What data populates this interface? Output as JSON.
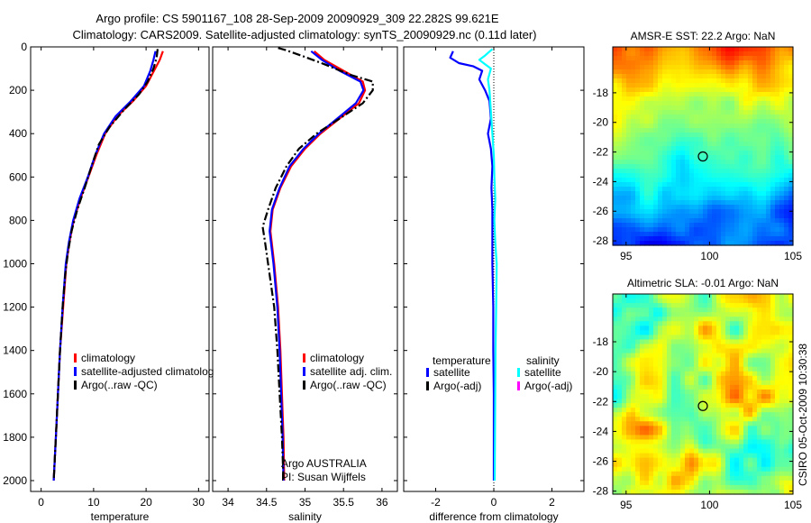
{
  "figure": {
    "title_line1": "Argo profile: CS 5901167_108 28-Sep-2009 20090929_309 22.282S 99.621E",
    "title_line2": "Climatology: CARS2009. Satellite-adjusted climatology: synTS_20090929.nc (0.11d later)",
    "side_label": "CSIRO 05-Oct-2009 10:30:38"
  },
  "chart_data": [
    {
      "type": "line",
      "id": "temperature",
      "xlabel": "temperature",
      "xlim": [
        -2,
        32
      ],
      "ylim": [
        0,
        2050
      ],
      "y_reversed": true,
      "xticks": [
        0,
        10,
        20,
        30
      ],
      "yticks": [
        0,
        200,
        400,
        600,
        800,
        1000,
        1200,
        1400,
        1600,
        1800,
        2000
      ],
      "legend": [
        "climatology",
        "satellite-adjusted climatolog",
        "Argo(..raw -QC)"
      ],
      "legend_colors": [
        "#ff0000",
        "#0000ff",
        "#000000"
      ],
      "series": [
        {
          "name": "climatology",
          "color": "#ff0000",
          "style": "solid",
          "points": [
            [
              23.2,
              20
            ],
            [
              22.6,
              60
            ],
            [
              21.5,
              110
            ],
            [
              20.0,
              180
            ],
            [
              17.5,
              250
            ],
            [
              14.5,
              320
            ],
            [
              12.2,
              400
            ],
            [
              10.5,
              500
            ],
            [
              9.0,
              600
            ],
            [
              7.5,
              700
            ],
            [
              6.2,
              800
            ],
            [
              5.4,
              900
            ],
            [
              4.8,
              1000
            ],
            [
              4.2,
              1200
            ],
            [
              3.6,
              1400
            ],
            [
              3.2,
              1600
            ],
            [
              2.8,
              1800
            ],
            [
              2.4,
              2000
            ]
          ]
        },
        {
          "name": "satellite-adjusted climatolog",
          "color": "#0000ff",
          "style": "solid",
          "points": [
            [
              21.8,
              20
            ],
            [
              21.4,
              60
            ],
            [
              20.8,
              110
            ],
            [
              19.6,
              180
            ],
            [
              17.1,
              250
            ],
            [
              14.2,
              320
            ],
            [
              12.0,
              400
            ],
            [
              10.3,
              500
            ],
            [
              8.9,
              600
            ],
            [
              7.3,
              700
            ],
            [
              6.1,
              800
            ],
            [
              5.3,
              900
            ],
            [
              4.7,
              1000
            ],
            [
              4.1,
              1200
            ],
            [
              3.6,
              1400
            ],
            [
              3.2,
              1600
            ],
            [
              2.8,
              1800
            ],
            [
              2.4,
              2000
            ]
          ]
        },
        {
          "name": "Argo(..raw -QC)",
          "color": "#000000",
          "style": "dashdot",
          "points": [
            [
              22.2,
              10
            ],
            [
              22.0,
              50
            ],
            [
              21.4,
              100
            ],
            [
              20.3,
              160
            ],
            [
              18.6,
              220
            ],
            [
              15.8,
              290
            ],
            [
              13.0,
              370
            ],
            [
              11.0,
              450
            ],
            [
              9.6,
              550
            ],
            [
              8.3,
              650
            ],
            [
              6.9,
              750
            ],
            [
              5.8,
              850
            ],
            [
              5.1,
              950
            ],
            [
              4.6,
              1050
            ],
            [
              4.1,
              1200
            ],
            [
              3.6,
              1400
            ],
            [
              3.2,
              1600
            ],
            [
              2.8,
              1800
            ],
            [
              2.4,
              2000
            ]
          ]
        }
      ]
    },
    {
      "type": "line",
      "id": "salinity",
      "xlabel": "salinity",
      "xlim": [
        33.8,
        36.2
      ],
      "ylim": [
        0,
        2050
      ],
      "y_reversed": true,
      "xticks": [
        34,
        34.5,
        35,
        35.5,
        36
      ],
      "legend": [
        "climatology",
        "satellite adj. clim.",
        "Argo(..raw -QC)"
      ],
      "legend_colors": [
        "#ff0000",
        "#0000ff",
        "#000000"
      ],
      "annotation_line1": "Argo AUSTRALIA",
      "annotation_line2": "PI: Susan Wijffels",
      "series": [
        {
          "name": "climatology",
          "color": "#ff0000",
          "style": "solid",
          "points": [
            [
              35.12,
              20
            ],
            [
              35.25,
              60
            ],
            [
              35.5,
              110
            ],
            [
              35.75,
              160
            ],
            [
              35.78,
              200
            ],
            [
              35.7,
              260
            ],
            [
              35.45,
              330
            ],
            [
              35.2,
              400
            ],
            [
              35.0,
              470
            ],
            [
              34.82,
              550
            ],
            [
              34.68,
              650
            ],
            [
              34.58,
              750
            ],
            [
              34.55,
              850
            ],
            [
              34.6,
              1000
            ],
            [
              34.65,
              1200
            ],
            [
              34.68,
              1400
            ],
            [
              34.7,
              1600
            ],
            [
              34.72,
              1800
            ],
            [
              34.73,
              2000
            ]
          ]
        },
        {
          "name": "satellite adj. clim.",
          "color": "#0000ff",
          "style": "solid",
          "points": [
            [
              35.08,
              20
            ],
            [
              35.22,
              60
            ],
            [
              35.45,
              110
            ],
            [
              35.72,
              160
            ],
            [
              35.76,
              200
            ],
            [
              35.66,
              260
            ],
            [
              35.42,
              330
            ],
            [
              35.18,
              400
            ],
            [
              34.98,
              470
            ],
            [
              34.8,
              550
            ],
            [
              34.67,
              650
            ],
            [
              34.57,
              750
            ],
            [
              34.54,
              850
            ],
            [
              34.59,
              1000
            ],
            [
              34.64,
              1200
            ],
            [
              34.67,
              1400
            ],
            [
              34.69,
              1600
            ],
            [
              34.71,
              1800
            ],
            [
              34.72,
              2000
            ]
          ]
        },
        {
          "name": "Argo(..raw -QC)",
          "color": "#000000",
          "style": "dashdot",
          "points": [
            [
              34.65,
              5
            ],
            [
              34.75,
              15
            ],
            [
              34.95,
              40
            ],
            [
              35.25,
              80
            ],
            [
              35.6,
              130
            ],
            [
              35.88,
              160
            ],
            [
              35.88,
              200
            ],
            [
              35.75,
              260
            ],
            [
              35.45,
              330
            ],
            [
              35.15,
              400
            ],
            [
              34.92,
              470
            ],
            [
              34.76,
              550
            ],
            [
              34.62,
              650
            ],
            [
              34.52,
              750
            ],
            [
              34.45,
              830
            ],
            [
              34.48,
              900
            ],
            [
              34.52,
              1000
            ],
            [
              34.56,
              1100
            ],
            [
              34.6,
              1200
            ],
            [
              34.64,
              1400
            ],
            [
              34.67,
              1600
            ],
            [
              34.7,
              1800
            ],
            [
              34.72,
              2000
            ]
          ]
        }
      ]
    },
    {
      "type": "line",
      "id": "difference",
      "xlabel": "difference from climatology",
      "xlim": [
        -3.1,
        3.1
      ],
      "ylim": [
        0,
        2050
      ],
      "y_reversed": true,
      "xticks": [
        -2,
        0,
        2
      ],
      "legend_left_title": "temperature",
      "legend_right_title": "salinity",
      "legend_left": [
        "satellite",
        "Argo(-adj)"
      ],
      "legend_left_colors": [
        "#0000ff",
        "#000000"
      ],
      "legend_right": [
        "satellite",
        "Argo(-adj)"
      ],
      "legend_right_colors": [
        "#00ffff",
        "#ff00ff"
      ],
      "series": [
        {
          "name": "temperature satellite",
          "color": "#0000ff",
          "style": "solid",
          "points": [
            [
              -1.4,
              20
            ],
            [
              -1.5,
              50
            ],
            [
              -1.2,
              75
            ],
            [
              -0.7,
              90
            ],
            [
              -0.4,
              110
            ],
            [
              -0.5,
              150
            ],
            [
              -0.3,
              200
            ],
            [
              -0.15,
              250
            ],
            [
              -0.1,
              330
            ],
            [
              -0.2,
              400
            ],
            [
              -0.1,
              470
            ],
            [
              -0.05,
              550
            ],
            [
              -0.08,
              650
            ],
            [
              -0.05,
              750
            ],
            [
              -0.05,
              850
            ],
            [
              -0.05,
              1000
            ],
            [
              -0.02,
              1200
            ],
            [
              -0.02,
              1400
            ],
            [
              0,
              1600
            ],
            [
              0,
              1800
            ],
            [
              0,
              2000
            ]
          ]
        },
        {
          "name": "salinity satellite",
          "color": "#00ffff",
          "style": "solid",
          "points": [
            [
              -0.05,
              10
            ],
            [
              -0.3,
              40
            ],
            [
              -0.5,
              60
            ],
            [
              -0.3,
              80
            ],
            [
              -0.1,
              100
            ],
            [
              -0.2,
              150
            ],
            [
              -0.15,
              200
            ],
            [
              -0.1,
              300
            ],
            [
              -0.05,
              400
            ],
            [
              0,
              500
            ],
            [
              0.02,
              600
            ],
            [
              0.05,
              700
            ],
            [
              0.02,
              800
            ],
            [
              0.05,
              900
            ],
            [
              0.1,
              1000
            ],
            [
              0.08,
              1200
            ],
            [
              0.06,
              1400
            ],
            [
              0.05,
              1600
            ],
            [
              0.04,
              1800
            ],
            [
              0.03,
              2000
            ]
          ]
        }
      ]
    },
    {
      "type": "heatmap",
      "id": "sst",
      "title": "AMSR-E SST: 22.2 Argo: NaN",
      "xlim": [
        94.2,
        105
      ],
      "ylim": [
        -28.3,
        -14.9
      ],
      "xticks": [
        95,
        100,
        105
      ],
      "yticks": [
        -18,
        -20,
        -22,
        -24,
        -26,
        -28
      ],
      "marker": [
        99.6,
        -22.3
      ]
    },
    {
      "type": "heatmap",
      "id": "sla",
      "title": "Altimetric SLA: -0.01 Argo: NaN",
      "xlim": [
        94.2,
        105
      ],
      "ylim": [
        -28.2,
        -14.8
      ],
      "xticks": [
        95,
        100,
        105
      ],
      "yticks": [
        -18,
        -20,
        -22,
        -24,
        -26,
        -28
      ],
      "marker": [
        99.6,
        -22.3
      ]
    }
  ]
}
